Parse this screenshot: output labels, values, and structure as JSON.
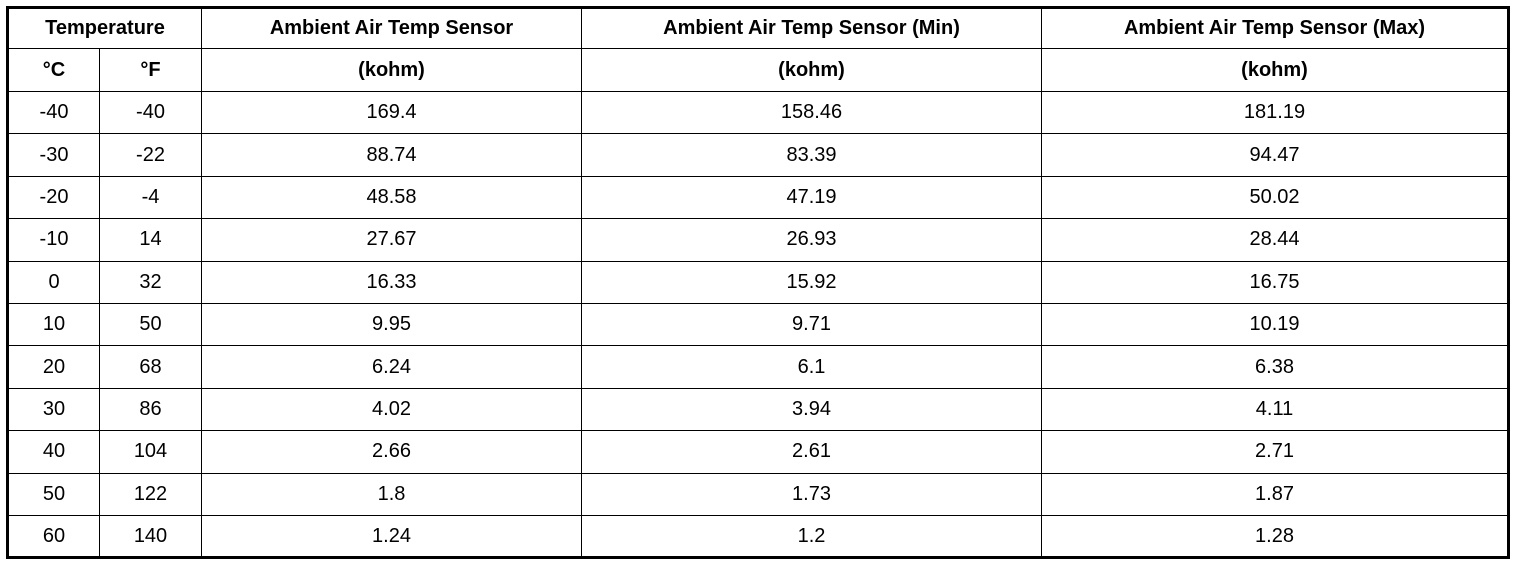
{
  "table": {
    "header": {
      "temperature": "Temperature",
      "celsius": "°C",
      "fahrenheit": "°F",
      "columns": [
        {
          "title": "Ambient Air Temp Sensor",
          "unit": "(kohm)"
        },
        {
          "title": "Ambient Air Temp Sensor (Min)",
          "unit": "(kohm)"
        },
        {
          "title": "Ambient Air Temp Sensor (Max)",
          "unit": "(kohm)"
        }
      ]
    },
    "rows": [
      [
        "-40",
        "-40",
        "169.4",
        "158.46",
        "181.19"
      ],
      [
        "-30",
        "-22",
        "88.74",
        "83.39",
        "94.47"
      ],
      [
        "-20",
        "-4",
        "48.58",
        "47.19",
        "50.02"
      ],
      [
        "-10",
        "14",
        "27.67",
        "26.93",
        "28.44"
      ],
      [
        "0",
        "32",
        "16.33",
        "15.92",
        "16.75"
      ],
      [
        "10",
        "50",
        "9.95",
        "9.71",
        "10.19"
      ],
      [
        "20",
        "68",
        "6.24",
        "6.1",
        "6.38"
      ],
      [
        "30",
        "86",
        "4.02",
        "3.94",
        "4.11"
      ],
      [
        "40",
        "104",
        "2.66",
        "2.61",
        "2.71"
      ],
      [
        "50",
        "122",
        "1.8",
        "1.73",
        "1.87"
      ],
      [
        "60",
        "140",
        "1.24",
        "1.2",
        "1.28"
      ]
    ]
  }
}
